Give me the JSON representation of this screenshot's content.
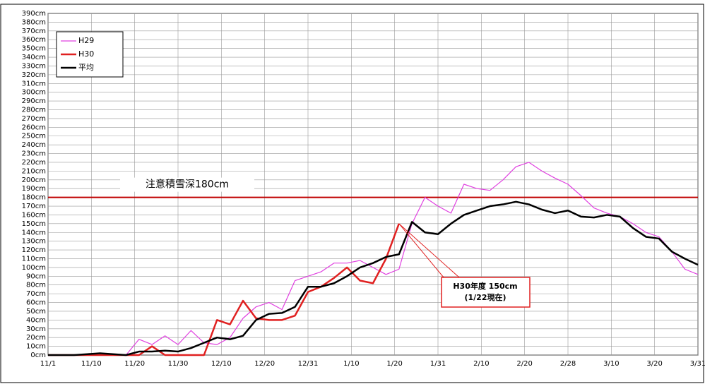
{
  "chart_data": {
    "type": "line",
    "x": [
      0,
      3,
      6,
      9,
      12,
      15,
      18,
      21,
      24,
      27,
      30,
      33,
      36,
      39,
      42,
      45,
      48,
      51,
      54,
      57,
      60,
      63,
      66,
      69,
      72,
      75,
      78,
      81,
      84,
      87,
      90,
      93,
      96,
      99,
      102,
      105,
      108,
      111,
      114,
      117,
      120,
      123,
      126,
      129,
      132,
      135,
      138,
      141,
      144,
      147,
      150
    ],
    "series": [
      {
        "name": "H29",
        "color": "#e040e0",
        "width": 1.2,
        "values": [
          0,
          0,
          0,
          1,
          2,
          1,
          0,
          18,
          12,
          22,
          12,
          28,
          14,
          12,
          20,
          42,
          55,
          60,
          52,
          85,
          90,
          95,
          105,
          105,
          108,
          100,
          92,
          98,
          150,
          180,
          170,
          162,
          195,
          190,
          188,
          200,
          215,
          220,
          210,
          202,
          195,
          182,
          168,
          162,
          158,
          150,
          140,
          135,
          118,
          98,
          92
        ]
      },
      {
        "name": "H30",
        "color": "#e02020",
        "width": 2.5,
        "values": [
          0,
          0,
          0,
          0,
          0,
          0,
          0,
          0,
          10,
          0,
          0,
          0,
          0,
          40,
          35,
          62,
          42,
          40,
          40,
          45,
          72,
          78,
          88,
          100,
          85,
          82,
          110,
          150,
          null,
          null,
          null,
          null,
          null,
          null,
          null,
          null,
          null,
          null,
          null,
          null,
          null,
          null,
          null,
          null,
          null,
          null,
          null,
          null,
          null,
          null,
          null
        ]
      },
      {
        "name": "平均",
        "color": "#000000",
        "width": 2.5,
        "values": [
          0,
          0,
          0,
          1,
          2,
          1,
          0,
          4,
          4,
          5,
          4,
          8,
          14,
          20,
          18,
          22,
          40,
          47,
          48,
          55,
          78,
          78,
          82,
          90,
          100,
          105,
          112,
          115,
          152,
          140,
          138,
          150,
          160,
          165,
          170,
          172,
          175,
          172,
          166,
          162,
          165,
          158,
          157,
          160,
          158,
          145,
          135,
          133,
          118,
          110,
          103
        ]
      }
    ],
    "xlim": [
      0,
      150
    ],
    "xticks": [
      {
        "value": 0,
        "label": "11/1"
      },
      {
        "value": 10,
        "label": "11/10"
      },
      {
        "value": 20,
        "label": "11/20"
      },
      {
        "value": 30,
        "label": "11/30"
      },
      {
        "value": 40,
        "label": "12/10"
      },
      {
        "value": 50,
        "label": "12/20"
      },
      {
        "value": 60,
        "label": "12/31"
      },
      {
        "value": 70,
        "label": "1/10"
      },
      {
        "value": 80,
        "label": "1/20"
      },
      {
        "value": 90,
        "label": "1/31"
      },
      {
        "value": 100,
        "label": "2/10"
      },
      {
        "value": 110,
        "label": "2/20"
      },
      {
        "value": 120,
        "label": "2/28"
      },
      {
        "value": 130,
        "label": "3/10"
      },
      {
        "value": 140,
        "label": "3/20"
      },
      {
        "value": 150,
        "label": "3/31"
      }
    ],
    "ylim": [
      0,
      390
    ],
    "yticks": [
      {
        "value": 0,
        "label": "0cm"
      },
      {
        "value": 10,
        "label": "10cm"
      },
      {
        "value": 20,
        "label": "20cm"
      },
      {
        "value": 30,
        "label": "30cm"
      },
      {
        "value": 40,
        "label": "40cm"
      },
      {
        "value": 50,
        "label": "50cm"
      },
      {
        "value": 60,
        "label": "60cm"
      },
      {
        "value": 70,
        "label": "70cm"
      },
      {
        "value": 80,
        "label": "80cm"
      },
      {
        "value": 90,
        "label": "90cm"
      },
      {
        "value": 100,
        "label": "100cm"
      },
      {
        "value": 110,
        "label": "110cm"
      },
      {
        "value": 120,
        "label": "120cm"
      },
      {
        "value": 130,
        "label": "130cm"
      },
      {
        "value": 140,
        "label": "140cm"
      },
      {
        "value": 150,
        "label": "150cm"
      },
      {
        "value": 160,
        "label": "160cm"
      },
      {
        "value": 170,
        "label": "170cm"
      },
      {
        "value": 180,
        "label": "180cm"
      },
      {
        "value": 190,
        "label": "190cm"
      },
      {
        "value": 200,
        "label": "200cm"
      },
      {
        "value": 210,
        "label": "210cm"
      },
      {
        "value": 220,
        "label": "220cm"
      },
      {
        "value": 230,
        "label": "230cm"
      },
      {
        "value": 240,
        "label": "240cm"
      },
      {
        "value": 250,
        "label": "250cm"
      },
      {
        "value": 260,
        "label": "260cm"
      },
      {
        "value": 270,
        "label": "270cm"
      },
      {
        "value": 280,
        "label": "280cm"
      },
      {
        "value": 290,
        "label": "290cm"
      },
      {
        "value": 300,
        "label": "300cm"
      },
      {
        "value": 310,
        "label": "310cm"
      },
      {
        "value": 320,
        "label": "320cm"
      },
      {
        "value": 330,
        "label": "330cm"
      },
      {
        "value": 340,
        "label": "340cm"
      },
      {
        "value": 350,
        "label": "350cm"
      },
      {
        "value": 360,
        "label": "360cm"
      },
      {
        "value": 370,
        "label": "370cm"
      },
      {
        "value": 380,
        "label": "380cm"
      },
      {
        "value": 390,
        "label": "390cm"
      }
    ],
    "grid": true,
    "legend": "top-left",
    "threshold": {
      "value": 180,
      "label": "注意積雪深180cm",
      "color": "#c00000"
    },
    "callout": {
      "x": 81,
      "value": 150,
      "lines": [
        "H30年度  150cm",
        "(1/22現在)"
      ],
      "color": "#e02020"
    }
  }
}
